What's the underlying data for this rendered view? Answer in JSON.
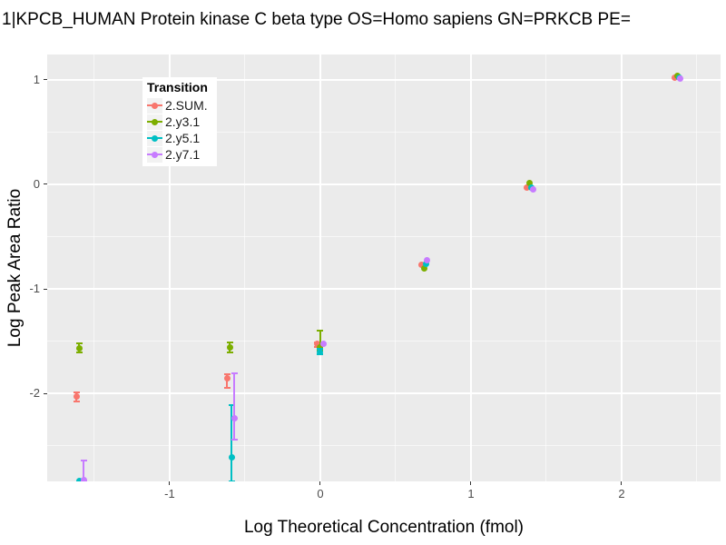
{
  "title": "1|KPCB_HUMAN Protein kinase C beta type OS=Homo sapiens GN=PRKCB PE=",
  "chart_data": {
    "type": "scatter",
    "title": "1|KPCB_HUMAN Protein kinase C beta type OS=Homo sapiens GN=PRKCB PE=",
    "xlabel": "Log Theoretical Concentration (fmol)",
    "ylabel": "Log Peak Area Ratio",
    "xlim": [
      -1.813,
      2.657
    ],
    "ylim": [
      -2.843,
      1.243
    ],
    "x_major_ticks": [
      -1,
      0,
      1,
      2
    ],
    "x_minor_ticks": [
      -1.5,
      -0.5,
      0.5,
      1.5,
      2.5
    ],
    "y_major_ticks": [
      1,
      0,
      -1,
      -2
    ],
    "y_minor_ticks": [
      0.5,
      -0.5,
      -1.5,
      -2.5
    ],
    "grid": true,
    "legend_title": "Transition",
    "legend_position": "inside-top-left",
    "panel_bg": "#EBEBEB",
    "series": [
      {
        "name": "2.SUM.",
        "color": "#F8766D",
        "points": [
          {
            "x": -1.62,
            "y": -2.03,
            "ymin": -2.08,
            "ymax": -1.99
          },
          {
            "x": -0.62,
            "y": -1.86,
            "ymin": -1.95,
            "ymax": -1.82
          },
          {
            "x": -0.02,
            "y": -1.53,
            "ymin": -1.56,
            "ymax": -1.51
          },
          {
            "x": 0.67,
            "y": -0.77
          },
          {
            "x": 1.37,
            "y": -0.03
          },
          {
            "x": 2.35,
            "y": 1.02
          }
        ]
      },
      {
        "name": "2.y3.1",
        "color": "#7CAE00",
        "points": [
          {
            "x": -1.6,
            "y": -1.57,
            "ymin": -1.61,
            "ymax": -1.52
          },
          {
            "x": -0.6,
            "y": -1.56,
            "ymin": -1.61,
            "ymax": -1.51
          },
          {
            "x": 0.0,
            "y": -1.56,
            "ymin": -1.59,
            "ymax": -1.4
          },
          {
            "x": 0.69,
            "y": -0.8
          },
          {
            "x": 1.39,
            "y": 0.01
          },
          {
            "x": 2.37,
            "y": 1.04
          }
        ]
      },
      {
        "name": "2.y5.1",
        "color": "#00BFC4",
        "points": [
          {
            "x": -1.6,
            "y": -2.84
          },
          {
            "x": -0.59,
            "y": -2.61,
            "ymin": -2.84,
            "ymax": -2.11
          },
          {
            "x": 0.0,
            "y": -1.6,
            "ymin": -1.63,
            "ymax": -1.57
          },
          {
            "x": 0.7,
            "y": -0.76
          },
          {
            "x": 1.4,
            "y": -0.03
          },
          {
            "x": 2.38,
            "y": 1.02
          }
        ]
      },
      {
        "name": "2.y7.1",
        "color": "#C77CFF",
        "points": [
          {
            "x": -1.57,
            "y": -2.83,
            "ymin": -2.84,
            "ymax": -2.64
          },
          {
            "x": -0.57,
            "y": -2.24,
            "ymin": -2.44,
            "ymax": -1.81
          },
          {
            "x": 0.02,
            "y": -1.53
          },
          {
            "x": 0.71,
            "y": -0.73
          },
          {
            "x": 1.41,
            "y": -0.05
          },
          {
            "x": 2.39,
            "y": 1.01
          }
        ]
      }
    ]
  }
}
